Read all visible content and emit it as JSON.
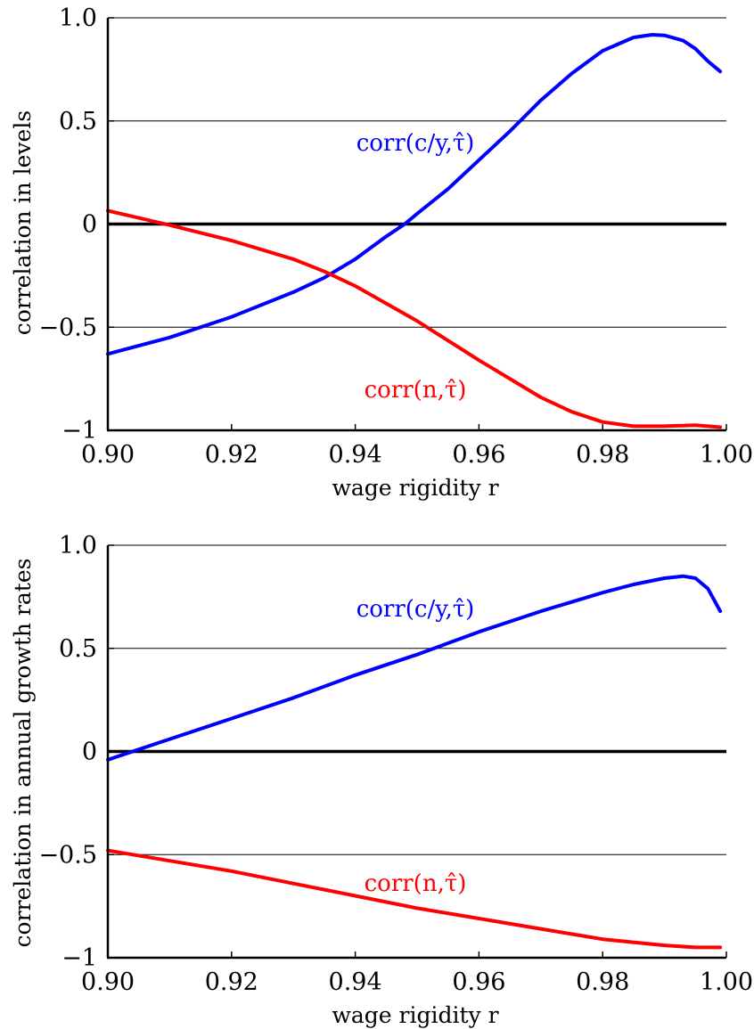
{
  "chart_data": [
    {
      "type": "line",
      "xlabel": "wage rigidity r",
      "ylabel": "correlation in levels",
      "xlim": [
        0.9,
        1.0
      ],
      "ylim": [
        -1,
        1
      ],
      "x_ticks": [
        "0.90",
        "0.92",
        "0.94",
        "0.96",
        "0.98",
        "1.00"
      ],
      "x_tick_values": [
        0.9,
        0.92,
        0.94,
        0.96,
        0.98,
        1.0
      ],
      "y_ticks": [
        "1.0",
        "0.5",
        "0",
        "−0.5",
        "−1"
      ],
      "y_tick_values": [
        1.0,
        0.5,
        0,
        -0.5,
        -1
      ],
      "grid": "horizontal",
      "series": [
        {
          "name": "corr(c/y,τ̂)",
          "color": "#0000ff",
          "x": [
            0.9,
            0.91,
            0.92,
            0.93,
            0.935,
            0.94,
            0.945,
            0.948,
            0.95,
            0.955,
            0.96,
            0.965,
            0.97,
            0.975,
            0.98,
            0.985,
            0.988,
            0.99,
            0.993,
            0.995,
            0.997,
            0.999
          ],
          "y": [
            -0.63,
            -0.55,
            -0.45,
            -0.33,
            -0.26,
            -0.17,
            -0.06,
            0.0,
            0.05,
            0.17,
            0.31,
            0.45,
            0.6,
            0.73,
            0.84,
            0.905,
            0.918,
            0.915,
            0.89,
            0.85,
            0.79,
            0.74
          ]
        },
        {
          "name": "corr(n,τ̂)",
          "color": "#ff0000",
          "x": [
            0.9,
            0.905,
            0.91,
            0.92,
            0.93,
            0.935,
            0.94,
            0.95,
            0.96,
            0.97,
            0.975,
            0.98,
            0.985,
            0.99,
            0.995,
            0.999
          ],
          "y": [
            0.065,
            0.03,
            -0.005,
            -0.08,
            -0.17,
            -0.23,
            -0.3,
            -0.47,
            -0.66,
            -0.84,
            -0.91,
            -0.96,
            -0.98,
            -0.98,
            -0.975,
            -0.985
          ]
        }
      ]
    },
    {
      "type": "line",
      "xlabel": "wage rigidity r",
      "ylabel": "correlation in annual growth rates",
      "xlim": [
        0.9,
        1.0
      ],
      "ylim": [
        -1,
        1
      ],
      "x_ticks": [
        "0.90",
        "0.92",
        "0.94",
        "0.96",
        "0.98",
        "1.00"
      ],
      "x_tick_values": [
        0.9,
        0.92,
        0.94,
        0.96,
        0.98,
        1.0
      ],
      "y_ticks": [
        "1.0",
        "0.5",
        "0",
        "−0.5",
        "−1"
      ],
      "y_tick_values": [
        1.0,
        0.5,
        0,
        -0.5,
        -1
      ],
      "grid": "horizontal",
      "series": [
        {
          "name": "corr(c/y,τ̂)",
          "color": "#0000ff",
          "x": [
            0.9,
            0.91,
            0.92,
            0.93,
            0.94,
            0.95,
            0.96,
            0.97,
            0.98,
            0.985,
            0.99,
            0.993,
            0.995,
            0.997,
            0.999
          ],
          "y": [
            -0.04,
            0.06,
            0.16,
            0.26,
            0.37,
            0.47,
            0.58,
            0.68,
            0.77,
            0.81,
            0.84,
            0.85,
            0.84,
            0.79,
            0.68
          ]
        },
        {
          "name": "corr(n,τ̂)",
          "color": "#ff0000",
          "x": [
            0.9,
            0.91,
            0.92,
            0.93,
            0.94,
            0.95,
            0.96,
            0.97,
            0.98,
            0.99,
            0.995,
            0.999
          ],
          "y": [
            -0.48,
            -0.53,
            -0.58,
            -0.64,
            -0.7,
            -0.76,
            -0.81,
            -0.86,
            -0.91,
            -0.94,
            -0.95,
            -0.95
          ]
        }
      ]
    }
  ]
}
